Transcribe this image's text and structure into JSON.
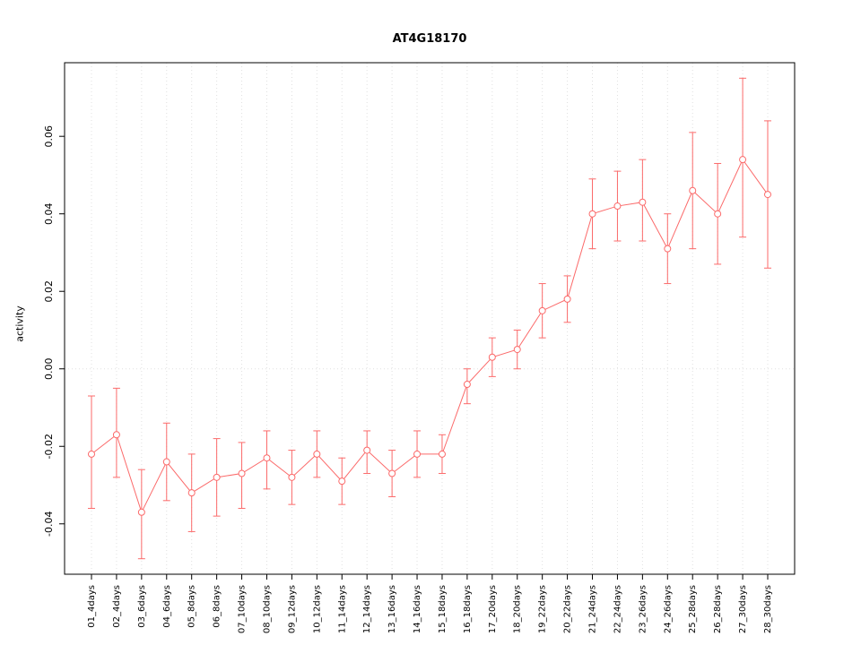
{
  "chart_data": {
    "type": "line",
    "title": "AT4G18170",
    "xlabel": "",
    "ylabel": "activity",
    "ylim": [
      -0.053,
      0.079
    ],
    "yticks": [
      -0.04,
      -0.02,
      0.0,
      0.02,
      0.04,
      0.06
    ],
    "grid": "dotted-vertical-per-category-and-horizontal-zero-line",
    "legend_position": "none",
    "marker": "open-circle",
    "error_bars": true,
    "color": "#fb6a6a",
    "grid_color": "#e0e0e0",
    "categories": [
      "01_4days",
      "02_4days",
      "03_6days",
      "04_6days",
      "05_8days",
      "06_8days",
      "07_10days",
      "08_10days",
      "09_12days",
      "10_12days",
      "11_14days",
      "12_14days",
      "13_16days",
      "14_16days",
      "15_18days",
      "16_18days",
      "17_20days",
      "18_20days",
      "19_22days",
      "20_22days",
      "21_24days",
      "22_24days",
      "23_26days",
      "24_26days",
      "25_28days",
      "26_28days",
      "27_30days",
      "28_30days"
    ],
    "series": [
      {
        "name": "activity",
        "values": [
          -0.022,
          -0.017,
          -0.037,
          -0.024,
          -0.032,
          -0.028,
          -0.027,
          -0.023,
          -0.028,
          -0.022,
          -0.029,
          -0.021,
          -0.027,
          -0.022,
          -0.022,
          -0.004,
          0.003,
          0.005,
          0.015,
          0.018,
          0.04,
          0.042,
          0.043,
          0.031,
          0.046,
          0.04,
          0.054,
          0.045
        ],
        "lower": [
          -0.036,
          -0.028,
          -0.049,
          -0.034,
          -0.042,
          -0.038,
          -0.036,
          -0.031,
          -0.035,
          -0.028,
          -0.035,
          -0.027,
          -0.033,
          -0.028,
          -0.027,
          -0.009,
          -0.002,
          0.0,
          0.008,
          0.012,
          0.031,
          0.033,
          0.033,
          0.022,
          0.031,
          0.027,
          0.034,
          0.026
        ],
        "upper": [
          -0.007,
          -0.005,
          -0.026,
          -0.014,
          -0.022,
          -0.018,
          -0.019,
          -0.016,
          -0.021,
          -0.016,
          -0.023,
          -0.016,
          -0.021,
          -0.016,
          -0.017,
          0.0,
          0.008,
          0.01,
          0.022,
          0.024,
          0.049,
          0.051,
          0.054,
          0.04,
          0.061,
          0.053,
          0.075,
          0.064
        ]
      }
    ]
  }
}
